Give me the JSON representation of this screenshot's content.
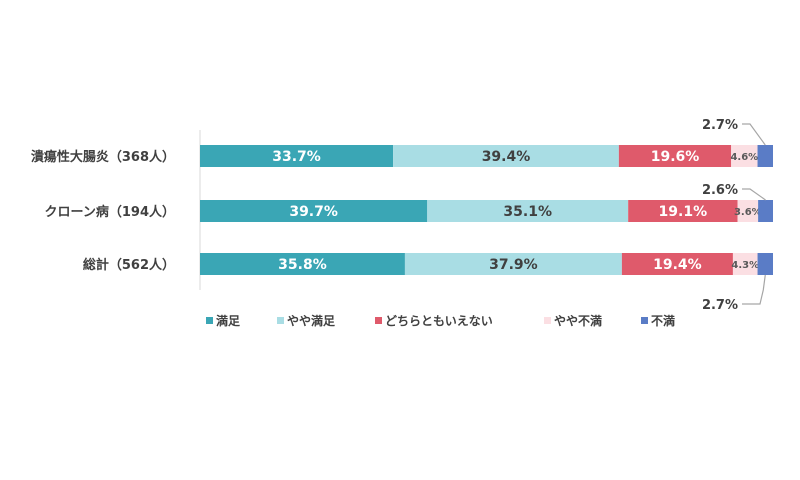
{
  "colors": {
    "満足": "#3aa6b5",
    "やや満足": "#a9dde4",
    "どちらともいえない": "#df5a6b",
    "やや不満": "#fbdfe3",
    "不満": "#5a7cc6"
  },
  "chart_data": {
    "type": "bar",
    "orientation": "horizontal",
    "stacked": "100%",
    "categories": [
      "潰瘍性大腸炎（368人）",
      "クローン病（194人）",
      "総計（562人）"
    ],
    "series": [
      {
        "name": "満足",
        "values": [
          33.7,
          39.7,
          35.8
        ]
      },
      {
        "name": "やや満足",
        "values": [
          39.4,
          35.1,
          37.9
        ]
      },
      {
        "name": "どちらともいえない",
        "values": [
          19.6,
          19.1,
          19.4
        ]
      },
      {
        "name": "やや不満",
        "values": [
          4.6,
          3.6,
          4.3
        ]
      },
      {
        "name": "不満",
        "values": [
          2.7,
          2.6,
          2.7
        ]
      }
    ],
    "data_labels": [
      [
        "33.7%",
        "39.4%",
        "19.6%",
        "4.6%",
        "2.7%"
      ],
      [
        "39.7%",
        "35.1%",
        "19.1%",
        "3.6%",
        "2.6%"
      ],
      [
        "35.8%",
        "37.9%",
        "19.4%",
        "4.3%",
        "2.7%"
      ]
    ],
    "legend": [
      "満足",
      "やや満足",
      "どちらともいえない",
      "やや不満",
      "不満"
    ],
    "legend_position": "bottom",
    "grid": false
  }
}
